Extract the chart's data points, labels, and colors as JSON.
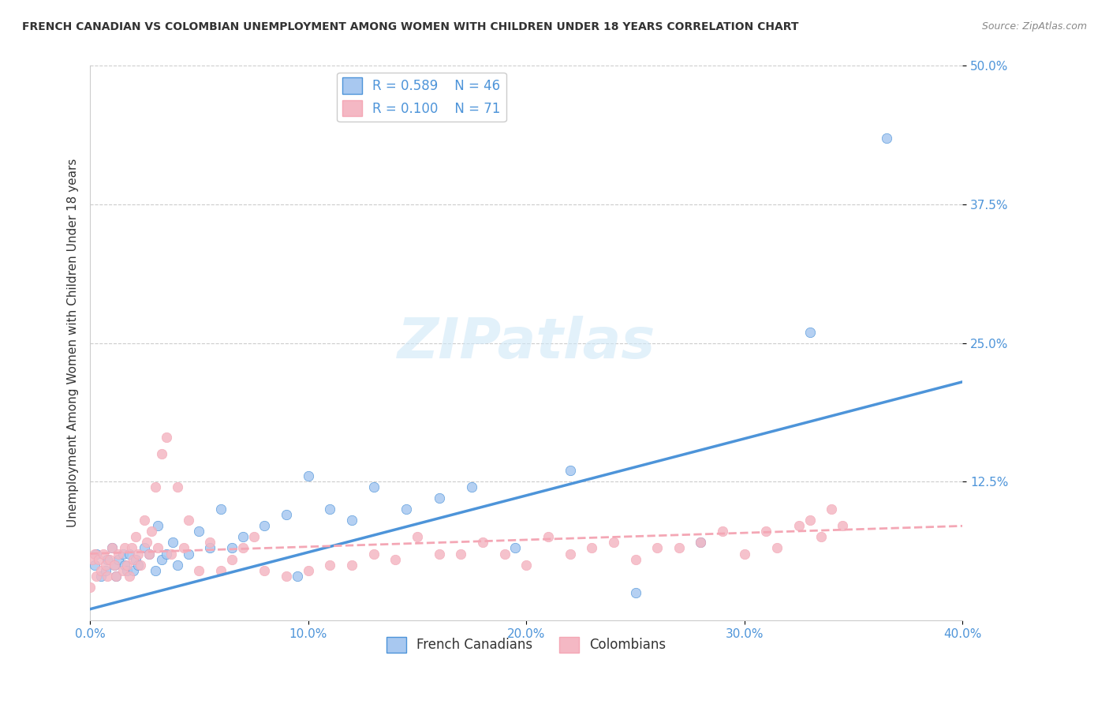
{
  "title": "FRENCH CANADIAN VS COLOMBIAN UNEMPLOYMENT AMONG WOMEN WITH CHILDREN UNDER 18 YEARS CORRELATION CHART",
  "source": "Source: ZipAtlas.com",
  "xlabel": "",
  "ylabel": "Unemployment Among Women with Children Under 18 years",
  "xlim": [
    0.0,
    0.4
  ],
  "ylim": [
    0.0,
    0.5
  ],
  "xticks": [
    0.0,
    0.1,
    0.2,
    0.3,
    0.4
  ],
  "xtick_labels": [
    "0.0%",
    "10.0%",
    "20.0%",
    "30.0%",
    "40.0%"
  ],
  "ytick_positions": [
    0.125,
    0.25,
    0.375,
    0.5
  ],
  "ytick_labels": [
    "12.5%",
    "25.0%",
    "37.5%",
    "50.0%"
  ],
  "watermark": "ZIPatlas",
  "legend_blue_r": "R = 0.589",
  "legend_blue_n": "N = 46",
  "legend_pink_r": "R = 0.100",
  "legend_pink_n": "N = 71",
  "blue_color": "#4d94d9",
  "pink_color": "#f4a7b5",
  "blue_scatter_color": "#a8c8f0",
  "pink_scatter_color": "#f4b8c4",
  "fc_points_x": [
    0.002,
    0.003,
    0.005,
    0.007,
    0.008,
    0.01,
    0.011,
    0.012,
    0.013,
    0.015,
    0.016,
    0.017,
    0.018,
    0.02,
    0.021,
    0.022,
    0.025,
    0.027,
    0.03,
    0.031,
    0.033,
    0.035,
    0.038,
    0.04,
    0.045,
    0.05,
    0.055,
    0.06,
    0.065,
    0.07,
    0.08,
    0.09,
    0.095,
    0.1,
    0.11,
    0.12,
    0.13,
    0.145,
    0.16,
    0.175,
    0.195,
    0.22,
    0.25,
    0.28,
    0.33,
    0.365
  ],
  "fc_points_y": [
    0.05,
    0.06,
    0.04,
    0.045,
    0.055,
    0.065,
    0.05,
    0.04,
    0.055,
    0.06,
    0.05,
    0.045,
    0.06,
    0.045,
    0.055,
    0.05,
    0.065,
    0.06,
    0.045,
    0.085,
    0.055,
    0.06,
    0.07,
    0.05,
    0.06,
    0.08,
    0.065,
    0.1,
    0.065,
    0.075,
    0.085,
    0.095,
    0.04,
    0.13,
    0.1,
    0.09,
    0.12,
    0.1,
    0.11,
    0.12,
    0.065,
    0.135,
    0.025,
    0.07,
    0.26,
    0.435
  ],
  "col_points_x": [
    0.0,
    0.001,
    0.002,
    0.003,
    0.004,
    0.005,
    0.006,
    0.007,
    0.008,
    0.009,
    0.01,
    0.011,
    0.012,
    0.013,
    0.015,
    0.016,
    0.017,
    0.018,
    0.019,
    0.02,
    0.021,
    0.022,
    0.023,
    0.025,
    0.026,
    0.027,
    0.028,
    0.03,
    0.031,
    0.033,
    0.035,
    0.037,
    0.04,
    0.043,
    0.045,
    0.05,
    0.055,
    0.06,
    0.065,
    0.07,
    0.075,
    0.08,
    0.09,
    0.1,
    0.11,
    0.12,
    0.13,
    0.14,
    0.15,
    0.16,
    0.17,
    0.18,
    0.19,
    0.2,
    0.21,
    0.22,
    0.23,
    0.24,
    0.25,
    0.26,
    0.27,
    0.28,
    0.29,
    0.3,
    0.31,
    0.315,
    0.325,
    0.33,
    0.335,
    0.34,
    0.345
  ],
  "col_points_y": [
    0.03,
    0.055,
    0.06,
    0.04,
    0.055,
    0.045,
    0.06,
    0.05,
    0.04,
    0.055,
    0.065,
    0.05,
    0.04,
    0.06,
    0.045,
    0.065,
    0.05,
    0.04,
    0.065,
    0.055,
    0.075,
    0.06,
    0.05,
    0.09,
    0.07,
    0.06,
    0.08,
    0.12,
    0.065,
    0.15,
    0.165,
    0.06,
    0.12,
    0.065,
    0.09,
    0.045,
    0.07,
    0.045,
    0.055,
    0.065,
    0.075,
    0.045,
    0.04,
    0.045,
    0.05,
    0.05,
    0.06,
    0.055,
    0.075,
    0.06,
    0.06,
    0.07,
    0.06,
    0.05,
    0.075,
    0.06,
    0.065,
    0.07,
    0.055,
    0.065,
    0.065,
    0.07,
    0.08,
    0.06,
    0.08,
    0.065,
    0.085,
    0.09,
    0.075,
    0.1,
    0.085
  ],
  "blue_line_x": [
    0.0,
    0.4
  ],
  "blue_line_y_start": 0.01,
  "blue_line_y_end": 0.215,
  "pink_line_x": [
    0.0,
    0.4
  ],
  "pink_line_y_start": 0.06,
  "pink_line_y_end": 0.085,
  "background_color": "#ffffff",
  "grid_color": "#cccccc",
  "title_color": "#333333",
  "axis_label_color": "#4d94d9",
  "tick_color": "#4d94d9"
}
